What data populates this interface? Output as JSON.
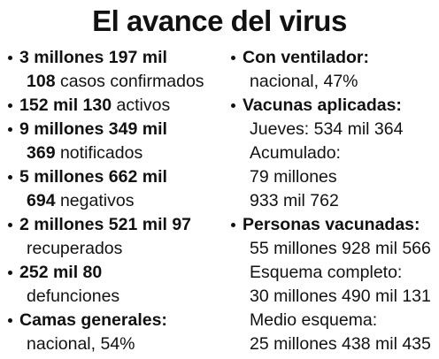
{
  "title": "El avance del virus",
  "left": [
    {
      "l1b": "3 millones 197 mil",
      "l2b": "108",
      "l2n": " casos confirmados"
    },
    {
      "l1b": "152 mil 130",
      "l1n": " activos"
    },
    {
      "l1b": "9 millones 349 mil",
      "l2b": "369",
      "l2n": " notificados"
    },
    {
      "l1b": "5 millones 662 mil",
      "l2b": "694",
      "l2n": " negativos"
    },
    {
      "l1b": "2 millones 521 mil 97",
      "l2n": "recuperados"
    },
    {
      "l1b": "252 mil 80",
      "l2n": "defunciones"
    },
    {
      "l1b": "Camas generales:",
      "l2n": "nacional, 54%"
    }
  ],
  "right": {
    "ventilador": {
      "label": "Con ventilador:",
      "value": "nacional, 47%"
    },
    "vacunas": {
      "label": "Vacunas aplicadas:",
      "jueves": "Jueves: 534 mil 364",
      "acumulado_label": "Acumulado:",
      "acumulado_1": "79 millones",
      "acumulado_2": "933 mil 762"
    },
    "personas": {
      "label": "Personas vacunadas:",
      "total": "55 millones 928 mil 566",
      "completo_label": "Esquema completo:",
      "completo": "30 millones 490 mil 131",
      "medio_label": "Medio esquema:",
      "medio": "25 millones 438 mil 435"
    }
  }
}
